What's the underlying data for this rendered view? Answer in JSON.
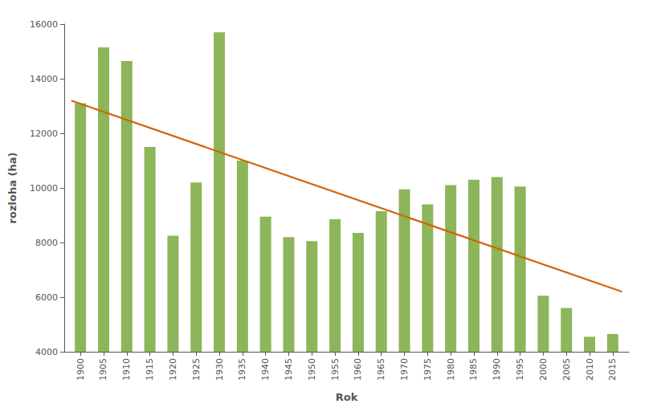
{
  "chart_data": {
    "type": "bar",
    "xlabel": "Rok",
    "ylabel": "rozloha (ha)",
    "xlim": [
      1896.5,
      2018.5
    ],
    "xticks": [
      1900,
      1905,
      1910,
      1915,
      1920,
      1925,
      1930,
      1935,
      1940,
      1945,
      1950,
      1955,
      1960,
      1965,
      1970,
      1975,
      1980,
      1985,
      1990,
      1995,
      2000,
      2005,
      2010,
      2015
    ],
    "ylim": [
      4000,
      16000
    ],
    "yticks": [
      4000,
      6000,
      8000,
      10000,
      12000,
      14000,
      16000
    ],
    "grid": false,
    "series": [
      {
        "type": "bar",
        "color": "#8db55a",
        "x": [
          1900,
          1905,
          1910,
          1915,
          1920,
          1925,
          1930,
          1935,
          1940,
          1945,
          1950,
          1955,
          1960,
          1965,
          1970,
          1975,
          1980,
          1985,
          1990,
          1995,
          2000,
          2005,
          2010,
          2015
        ],
        "values": [
          13100,
          15150,
          14650,
          11500,
          8250,
          10200,
          15700,
          11000,
          8950,
          8200,
          8050,
          8850,
          8350,
          9150,
          9950,
          9400,
          10100,
          10300,
          10400,
          10050,
          6050,
          5600,
          4550,
          4650
        ]
      },
      {
        "type": "line",
        "color": "#d4630a",
        "x": [
          1898,
          2017
        ],
        "values": [
          13200,
          6200
        ]
      }
    ]
  }
}
